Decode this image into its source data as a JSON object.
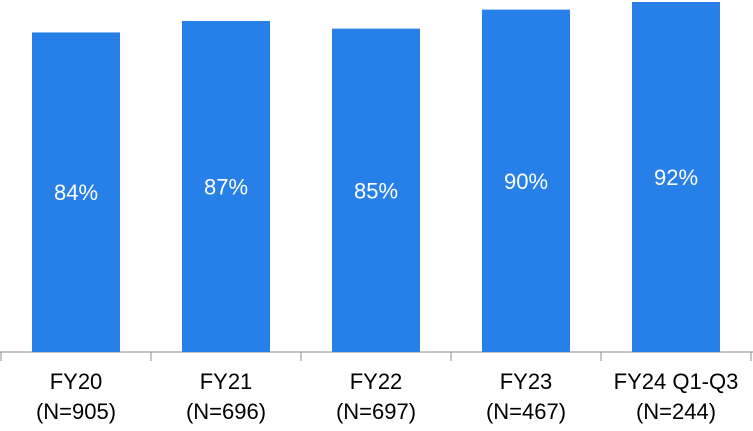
{
  "chart_data": {
    "type": "bar",
    "title": "",
    "xlabel": "",
    "ylabel": "",
    "categories": [
      [
        "FY20",
        "(N=905)"
      ],
      [
        "FY21",
        "(N=696)"
      ],
      [
        "FY22",
        "(N=697)"
      ],
      [
        "FY23",
        "(N=467)"
      ],
      [
        "FY24 Q1-Q3",
        "(N=244)"
      ]
    ],
    "values": [
      84,
      87,
      85,
      90,
      92
    ],
    "value_labels": [
      "84%",
      "87%",
      "85%",
      "90%",
      "92%"
    ],
    "unit": "%",
    "ylim": [
      0,
      100
    ],
    "grid": false,
    "legend": "none",
    "bar_color": "#2680e8",
    "label_color": "#ffffff",
    "axis_color": "#8c8c8c"
  }
}
